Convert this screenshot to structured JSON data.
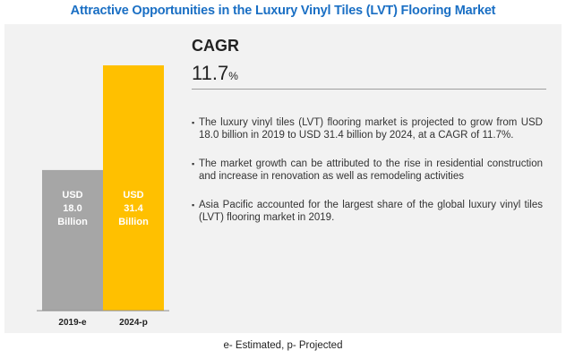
{
  "title": "Attractive Opportunities in the Luxury Vinyl Tiles (LVT) Flooring Market",
  "cagr": {
    "label": "CAGR",
    "value": "11.7",
    "unit": "%"
  },
  "bullets": [
    "The luxury vinyl tiles (LVT) flooring market is projected to grow from USD 18.0 billion in 2019 to USD 31.4 billion by 2024, at a CAGR of 11.7%.",
    "The market growth can be attributed to the rise in residential construction and increase in renovation as well as remodeling activities",
    "Asia Pacific accounted for the largest share of the global luxury vinyl tiles (LVT) flooring market in 2019."
  ],
  "footnote": "e- Estimated, p- Projected",
  "colors": {
    "title": "#1a6fc4",
    "bar_2019": "#a6a6a6",
    "bar_2024": "#ffc000",
    "panel": "#f2f2f2"
  },
  "chart_data": {
    "type": "bar",
    "categories": [
      "2019-e",
      "2024-p"
    ],
    "values": [
      18.0,
      31.4
    ],
    "bar_labels": [
      [
        "USD",
        "18.0",
        "Billion"
      ],
      [
        "USD",
        "31.4",
        "Billion"
      ]
    ],
    "title": "",
    "xlabel": "",
    "ylabel": "",
    "ylim": [
      0,
      31.4
    ],
    "grid": false
  }
}
